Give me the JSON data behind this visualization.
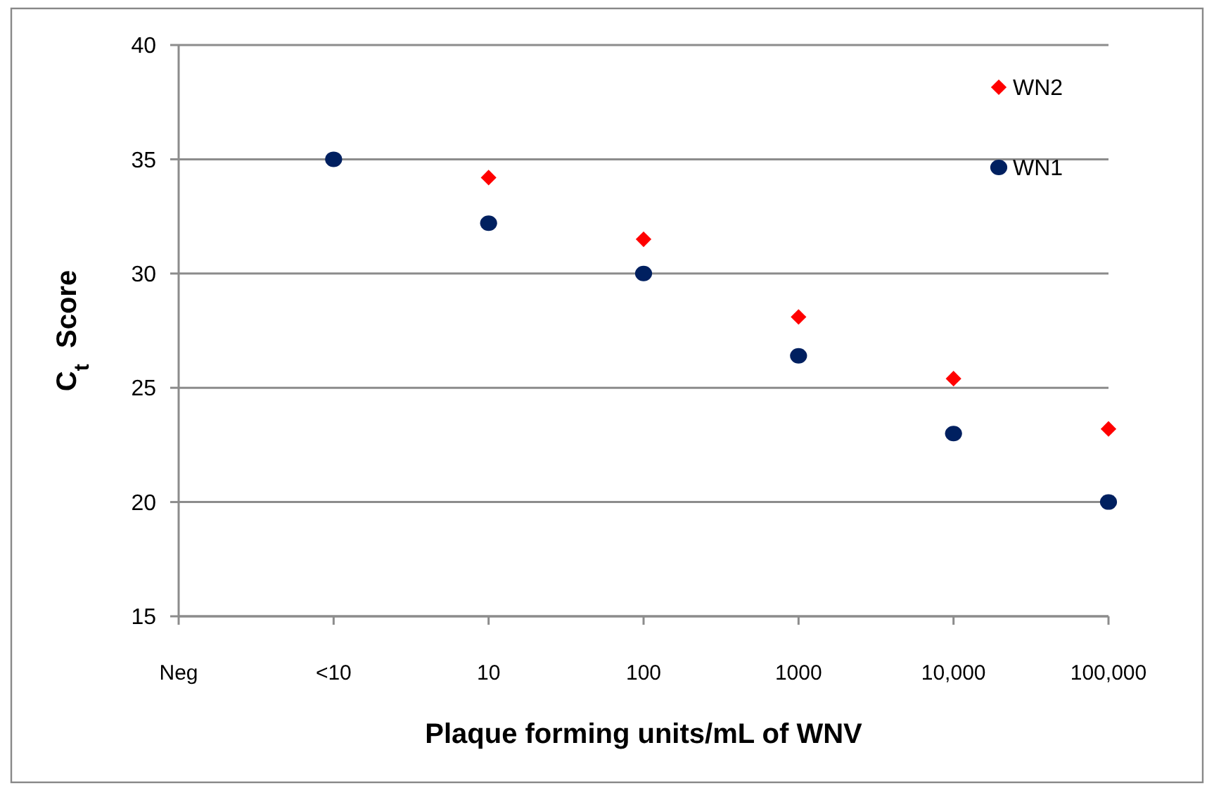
{
  "chart_data": {
    "type": "scatter",
    "xlabel": "Plaque forming units/mL of WNV",
    "ylabel": "C$_{t}$  Score",
    "categories": [
      "Neg",
      "<10",
      "10",
      "100",
      "1000",
      "10,000",
      "100,000"
    ],
    "ylim": [
      15,
      40
    ],
    "yticks": [
      15,
      20,
      25,
      30,
      35,
      40
    ],
    "grid": "y",
    "legend": "top right",
    "series": [
      {
        "name": "WN2",
        "color": "#ff0000",
        "marker": "diamond",
        "values": [
          null,
          null,
          34.2,
          31.5,
          28.1,
          25.4,
          23.2
        ]
      },
      {
        "name": "WN1",
        "color": "#002060",
        "marker": "circle",
        "values": [
          null,
          35,
          32.2,
          30,
          26.4,
          23,
          20
        ]
      }
    ]
  }
}
